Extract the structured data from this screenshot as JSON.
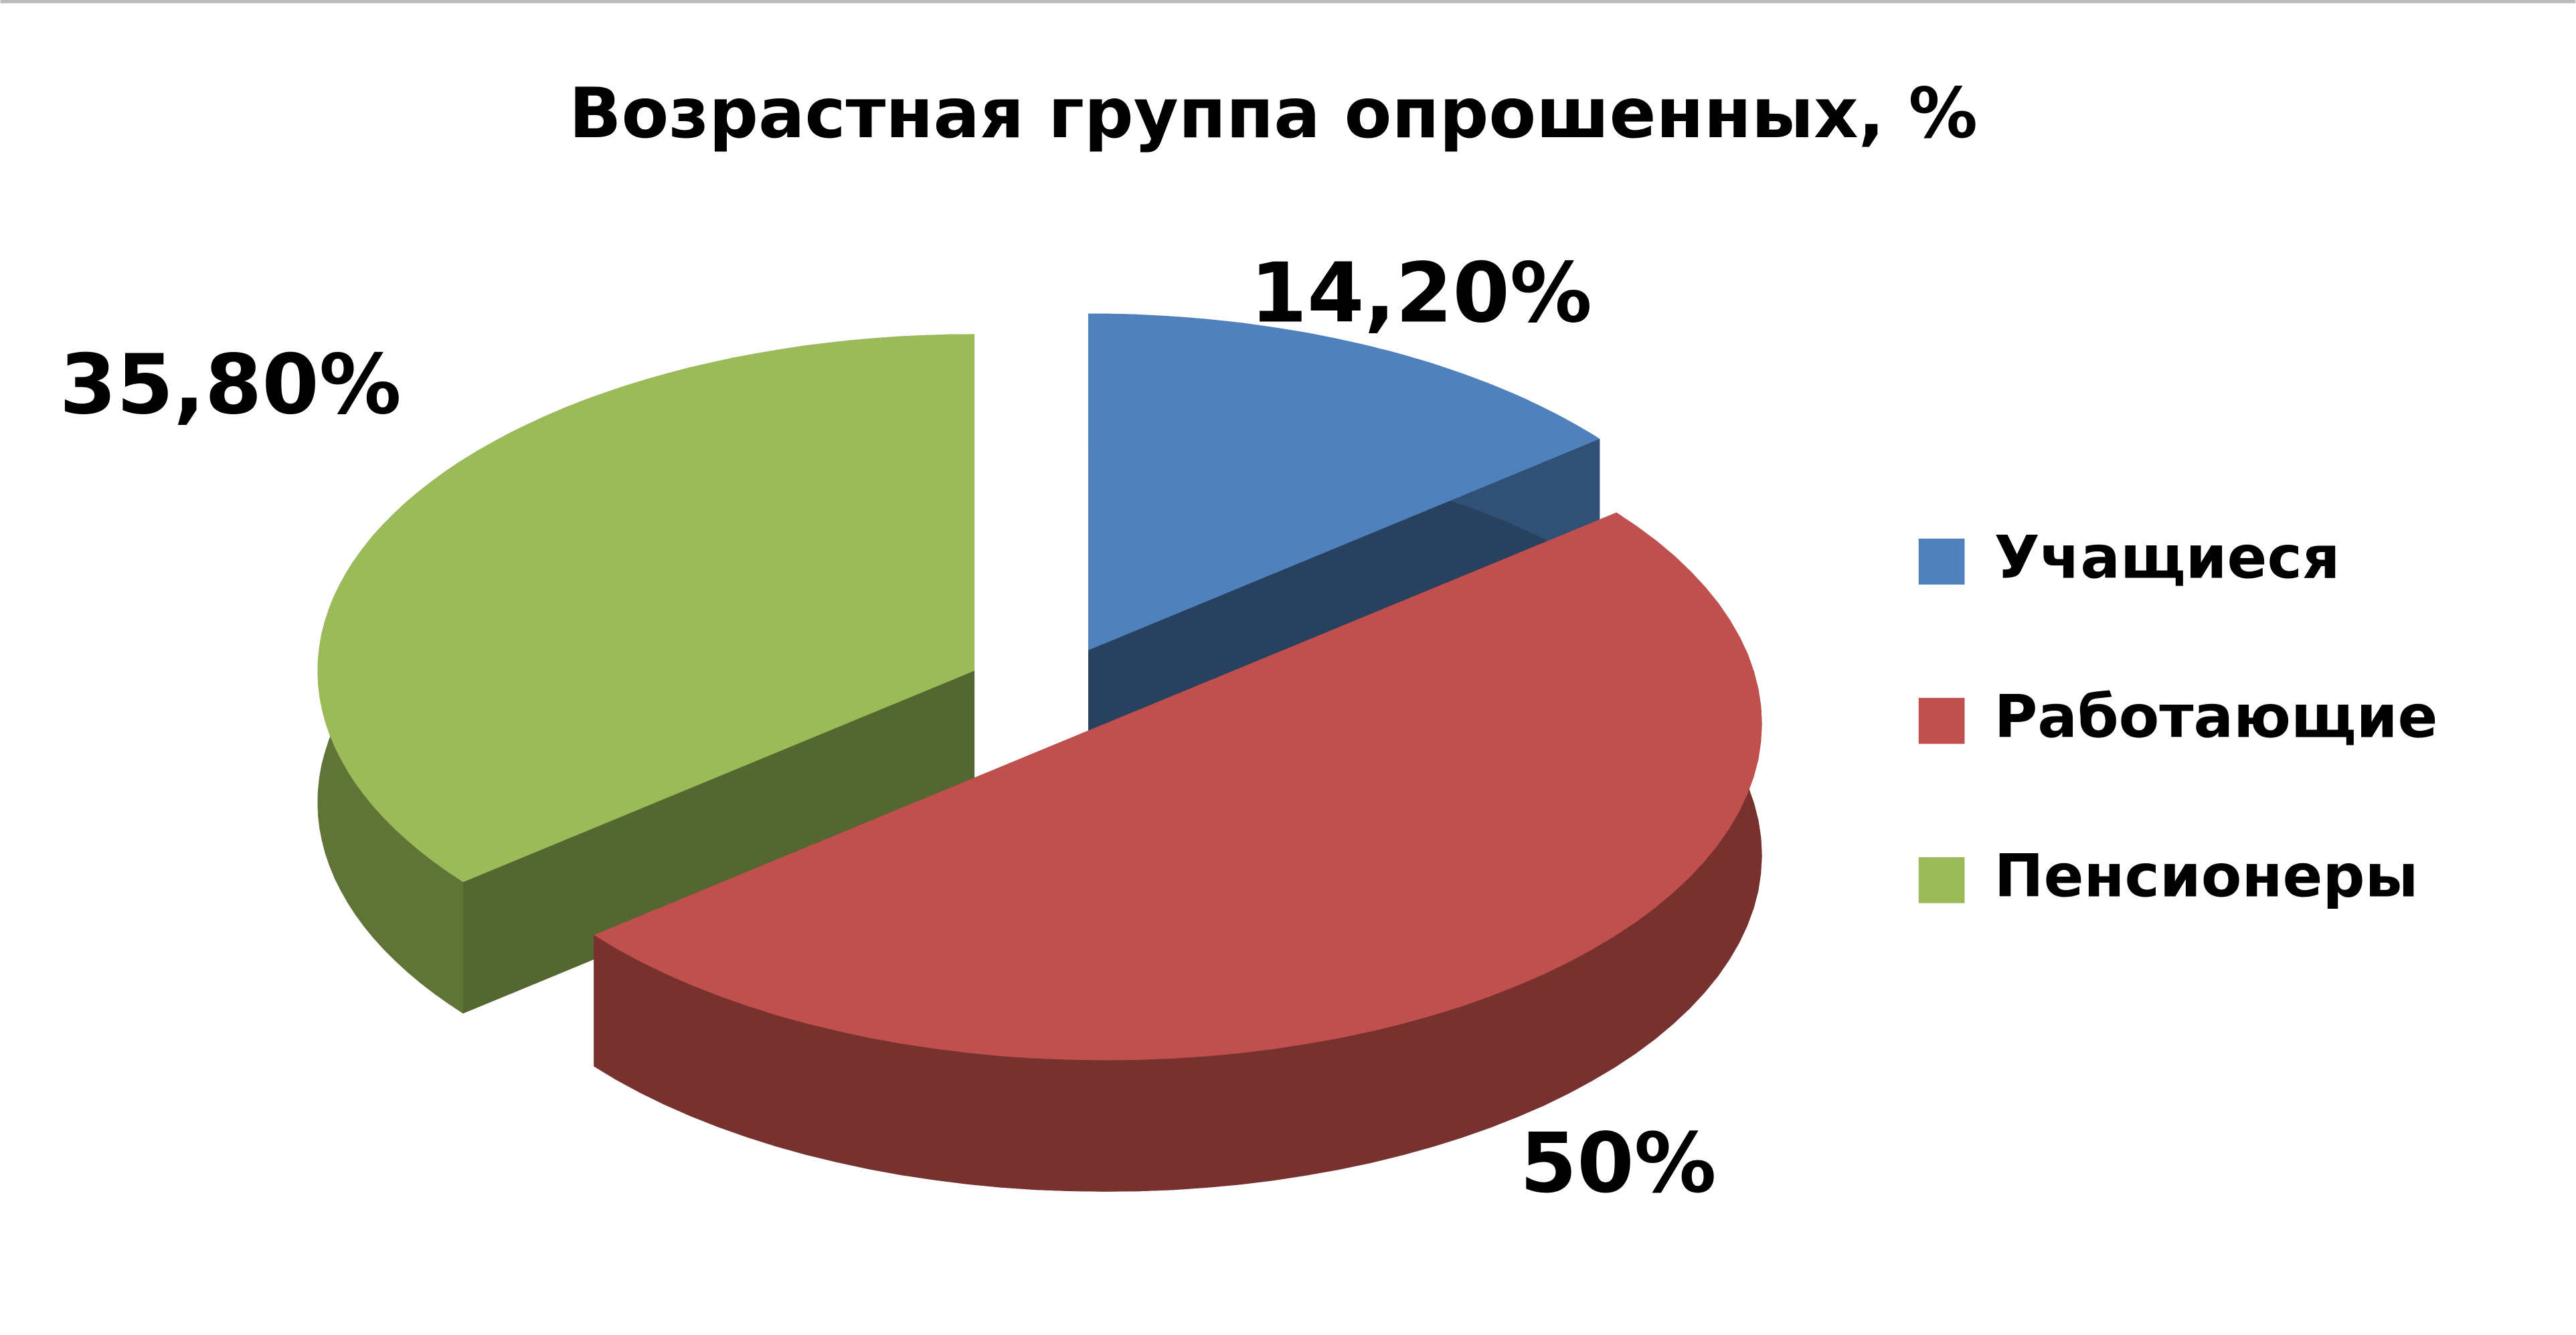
{
  "chart_data": {
    "type": "pie3d",
    "title": "Возрастная группа опрошенных, %",
    "categories": [
      "Учащиеся",
      "Работающие",
      "Пенсионеры"
    ],
    "values": [
      14.2,
      50,
      35.8
    ],
    "value_labels": [
      "14,20%",
      "50%",
      "35,80%"
    ],
    "colors": [
      "#4f81bd",
      "#c0504d",
      "#9bbb59"
    ],
    "legend": "right"
  }
}
